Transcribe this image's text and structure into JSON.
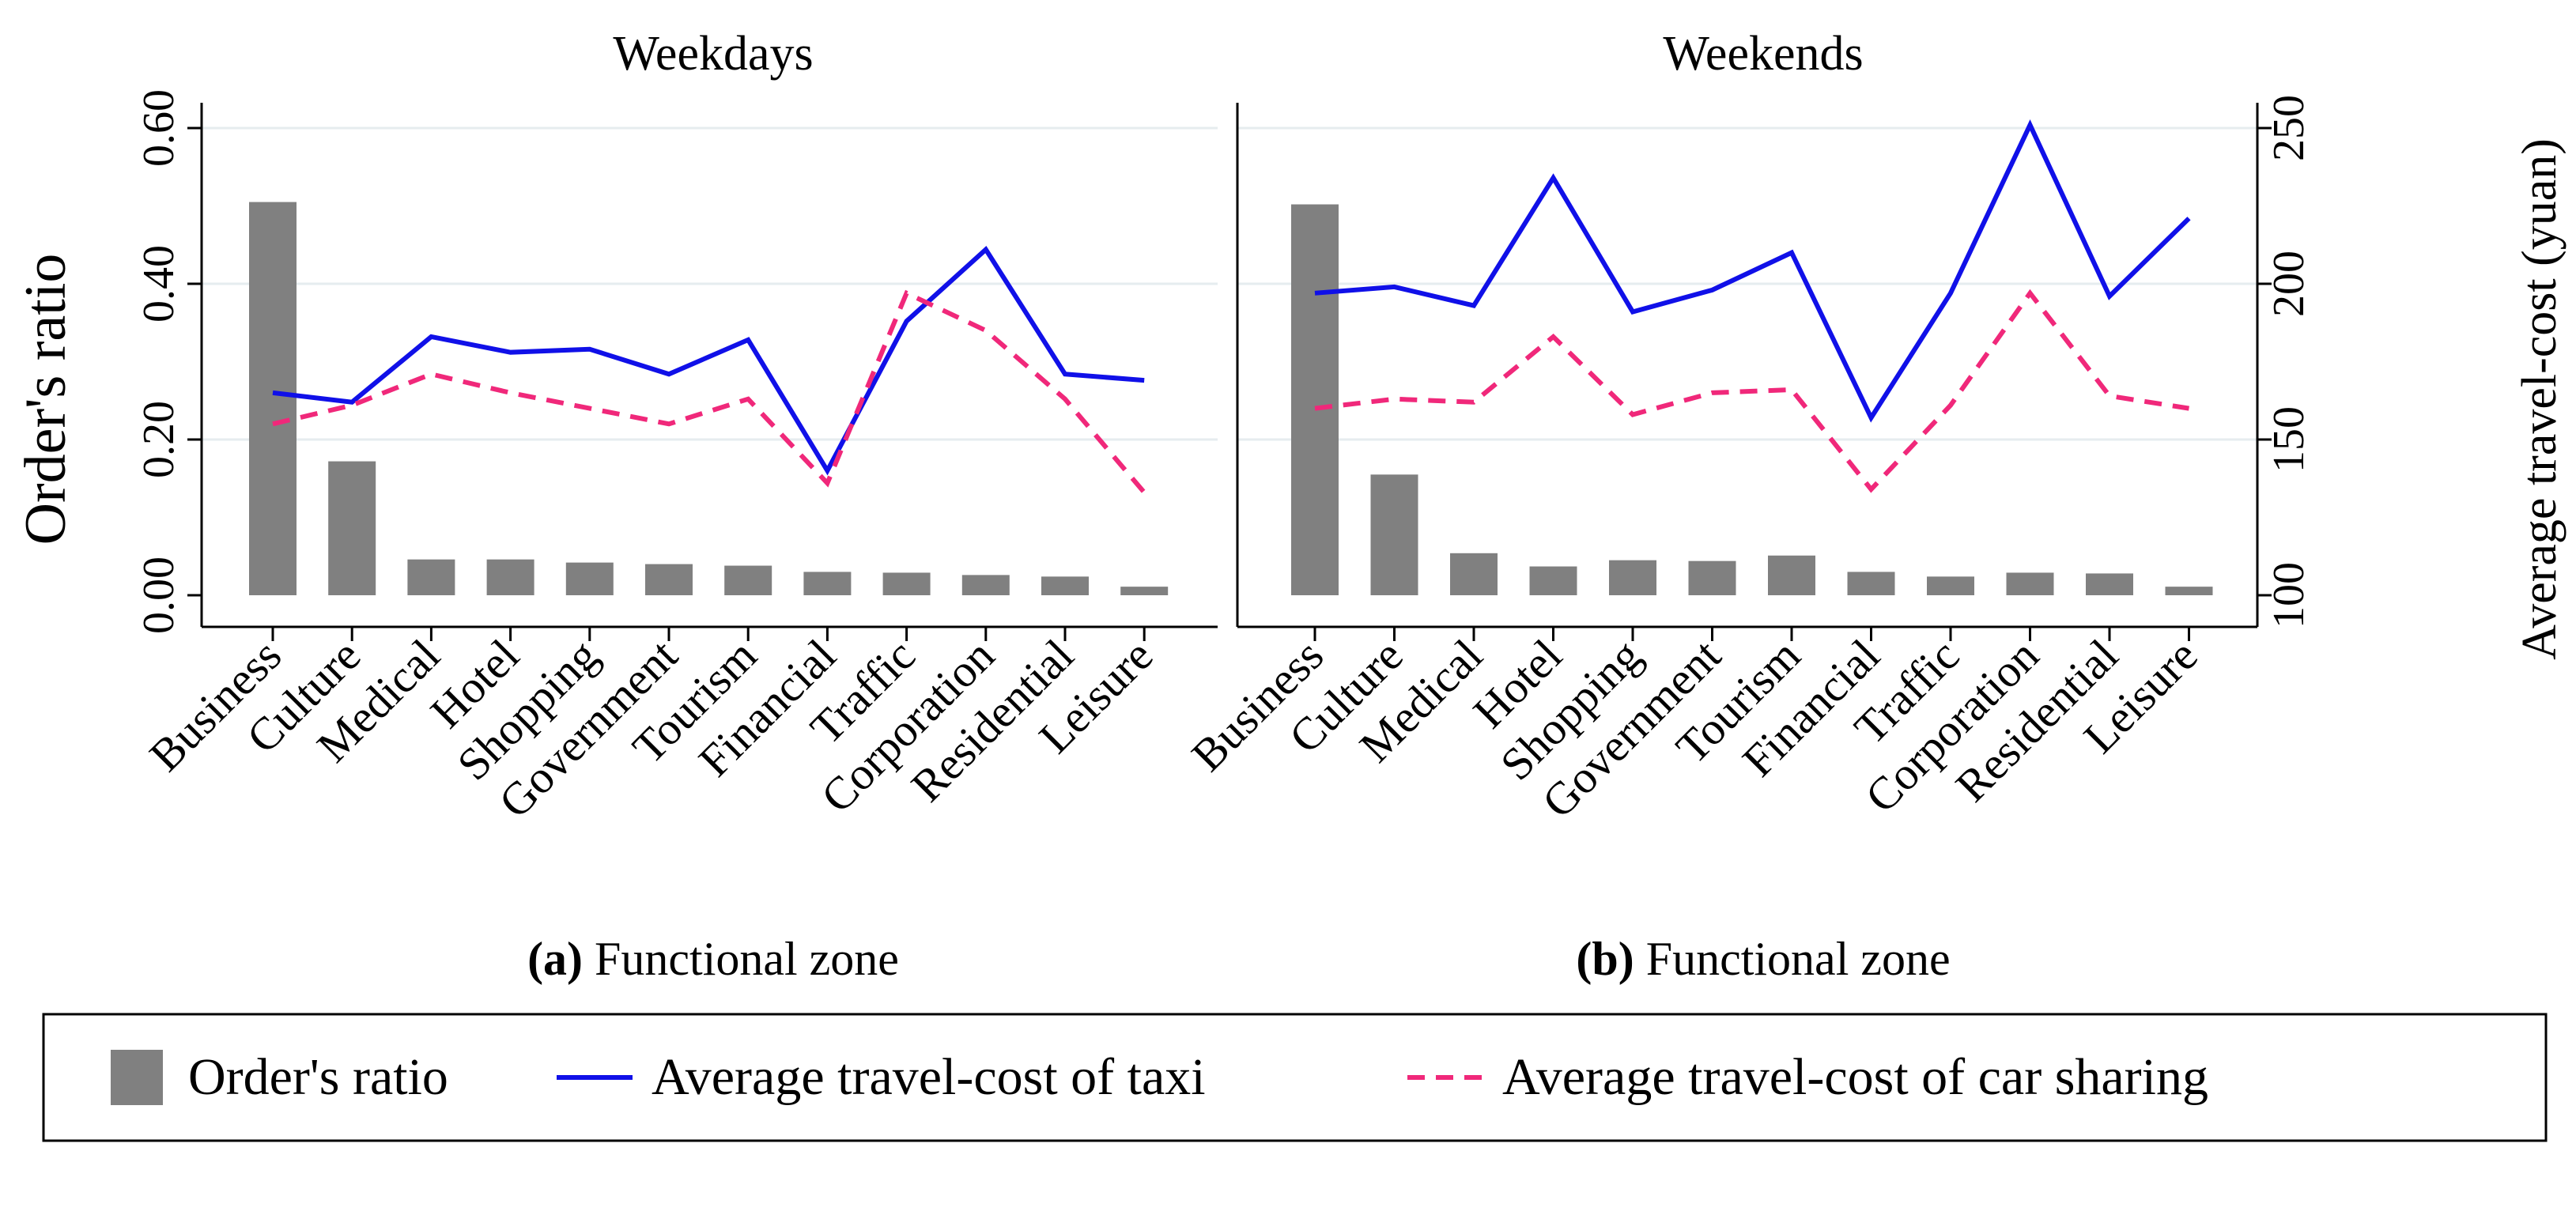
{
  "chart_data": [
    {
      "type": "bar+line",
      "title": "Weekdays",
      "xlabel_bold": "(a)",
      "xlabel": "Functional zone",
      "ylabel": "Order's ratio",
      "ylim": [
        0,
        0.6
      ],
      "yticks": [
        "0.00",
        "0.20",
        "0.40",
        "0.60"
      ],
      "y2lim": [
        100,
        250
      ],
      "categories": [
        "Business",
        "Culture",
        "Medical",
        "Hotel",
        "Shopping",
        "Government",
        "Tourism",
        "Financial",
        "Traffic",
        "Corporation",
        "Residential",
        "Leisure"
      ],
      "bars": {
        "name": "Order's ratio",
        "values": [
          0.505,
          0.172,
          0.046,
          0.046,
          0.042,
          0.04,
          0.038,
          0.03,
          0.029,
          0.026,
          0.024,
          0.011
        ]
      },
      "series": [
        {
          "name": "Average travel-cost of taxi",
          "axis": "right",
          "values": [
            165,
            162,
            183,
            178,
            179,
            171,
            182,
            140,
            188,
            211,
            171,
            169
          ]
        },
        {
          "name": "Average travel-cost of car sharing",
          "axis": "right",
          "values": [
            155,
            161,
            171,
            165,
            160,
            155,
            163,
            136,
            197,
            185,
            163,
            133
          ]
        }
      ],
      "grid": true
    },
    {
      "type": "bar+line",
      "title": "Weekends",
      "xlabel_bold": "(b)",
      "xlabel": "Functional zone",
      "y2label": "Average travel-cost (yuan)",
      "y2lim": [
        100,
        250
      ],
      "y2ticks": [
        "100",
        "150",
        "200",
        "250"
      ],
      "ylim": [
        0,
        0.6
      ],
      "categories": [
        "Business",
        "Culture",
        "Medical",
        "Hotel",
        "Shopping",
        "Government",
        "Tourism",
        "Financial",
        "Traffic",
        "Corporation",
        "Residential",
        "Leisure"
      ],
      "bars": {
        "name": "Order's ratio",
        "values": [
          0.502,
          0.155,
          0.054,
          0.037,
          0.045,
          0.044,
          0.051,
          0.03,
          0.024,
          0.029,
          0.028,
          0.011
        ]
      },
      "series": [
        {
          "name": "Average travel-cost of taxi",
          "axis": "right",
          "values": [
            197,
            199,
            193,
            234,
            191,
            198,
            210,
            157,
            197,
            251,
            196,
            221
          ]
        },
        {
          "name": "Average travel-cost of car sharing",
          "axis": "right",
          "values": [
            160,
            163,
            162,
            183,
            158,
            165,
            166,
            134,
            161,
            197,
            164,
            160
          ]
        }
      ],
      "grid": true
    }
  ],
  "legend": {
    "items": [
      {
        "label": "Order's ratio",
        "kind": "bar",
        "color": "#808080"
      },
      {
        "label": "Average travel-cost of taxi",
        "kind": "solid",
        "color": "#1010e8"
      },
      {
        "label": "Average travel-cost of car sharing",
        "kind": "dashed",
        "color": "#f0287a"
      }
    ]
  },
  "colors": {
    "bar": "#808080",
    "taxi": "#1010e8",
    "carsharing": "#f0287a",
    "grid": "#e6ecef"
  }
}
